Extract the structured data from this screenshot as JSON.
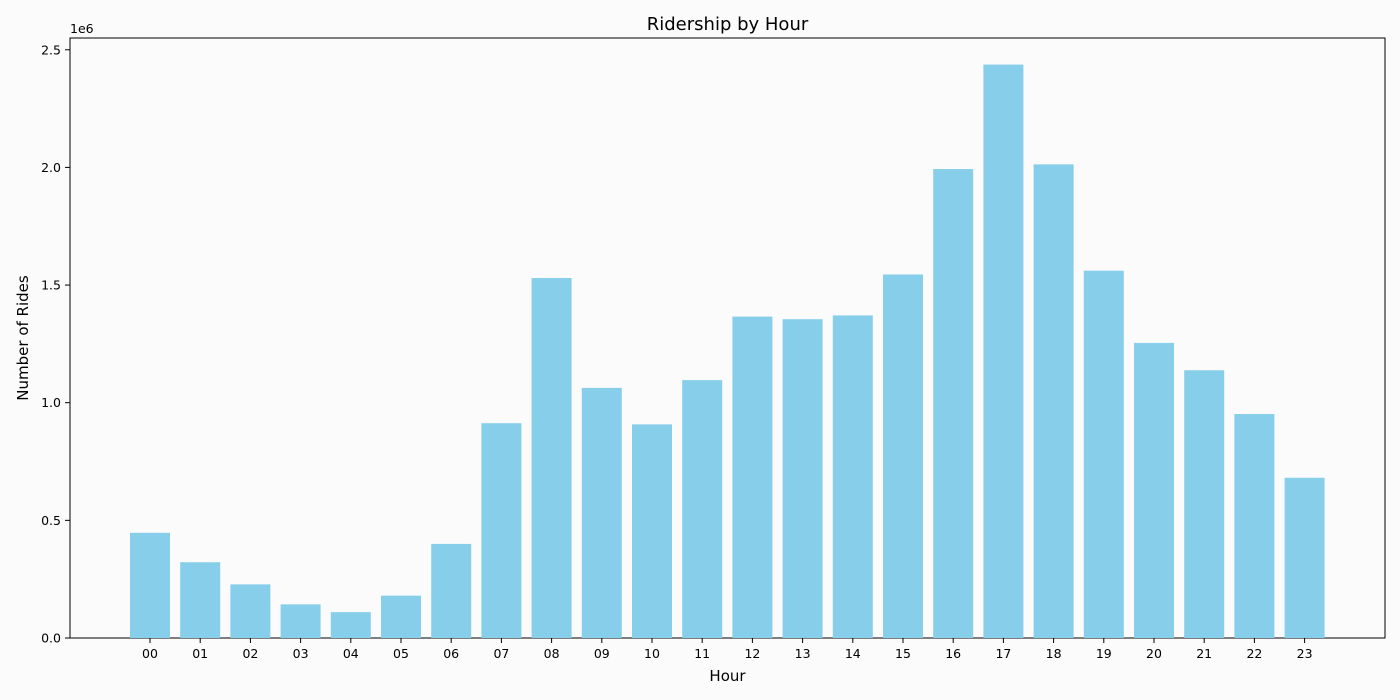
{
  "chart_data": {
    "type": "bar",
    "title": "Ridership by Hour",
    "xlabel": "Hour",
    "ylabel": "Number of Rides",
    "y_offset_label": "1e6",
    "y_scale": 1000000,
    "categories": [
      "00",
      "01",
      "02",
      "03",
      "04",
      "05",
      "06",
      "07",
      "08",
      "09",
      "10",
      "11",
      "12",
      "13",
      "14",
      "15",
      "16",
      "17",
      "18",
      "19",
      "20",
      "21",
      "22",
      "23"
    ],
    "values": [
      447000,
      322000,
      228000,
      143000,
      110000,
      180000,
      400000,
      913000,
      1530000,
      1063000,
      908000,
      1096000,
      1366000,
      1355000,
      1371000,
      1545000,
      1993000,
      2437000,
      2013000,
      1561000,
      1254000,
      1138000,
      952000,
      681000
    ],
    "ylim": [
      0,
      2550000
    ],
    "yticks": [
      0,
      500000,
      1000000,
      1500000,
      2000000,
      2500000
    ],
    "ytick_labels": [
      "0.0",
      "0.5",
      "1.0",
      "1.5",
      "2.0",
      "2.5"
    ],
    "bar_color": "#87ceeb",
    "grid": false,
    "legend": "none"
  }
}
